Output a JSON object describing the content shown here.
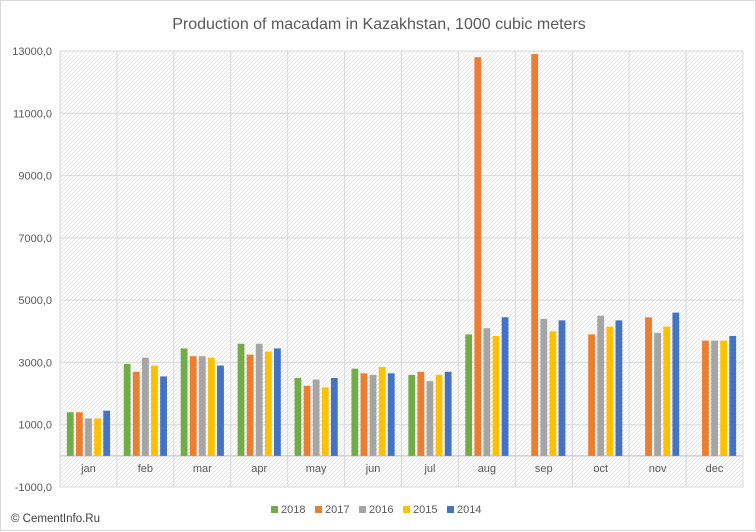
{
  "chart_data": {
    "type": "bar",
    "title": "Production of macadam in Kazakhstan, 1000 cubic meters",
    "categories": [
      "jan",
      "feb",
      "mar",
      "apr",
      "may",
      "jun",
      "jul",
      "aug",
      "sep",
      "oct",
      "nov",
      "dec"
    ],
    "series": [
      {
        "name": "2018",
        "color": "#70ad47",
        "values": [
          1400,
          2950,
          3450,
          3600,
          2500,
          2800,
          2600,
          3900,
          null,
          null,
          null,
          null
        ]
      },
      {
        "name": "2017",
        "color": "#ed7d31",
        "values": [
          1400,
          2700,
          3200,
          3250,
          2250,
          2650,
          2700,
          12800,
          12900,
          3900,
          4450,
          3700
        ]
      },
      {
        "name": "2016",
        "color": "#a5a5a5",
        "values": [
          1200,
          3150,
          3200,
          3600,
          2450,
          2600,
          2400,
          4100,
          4400,
          4500,
          3950,
          3700
        ]
      },
      {
        "name": "2015",
        "color": "#ffc000",
        "values": [
          1200,
          2900,
          3150,
          3350,
          2200,
          2850,
          2600,
          3850,
          4000,
          4150,
          4150,
          3700
        ]
      },
      {
        "name": "2014",
        "color": "#4472c4",
        "values": [
          1450,
          2550,
          2900,
          3450,
          2500,
          2650,
          2700,
          4450,
          4350,
          4350,
          4600,
          3850
        ]
      }
    ],
    "ylim": [
      -1000,
      13000
    ],
    "yticks": [
      -1000,
      1000,
      3000,
      5000,
      7000,
      9000,
      11000,
      13000
    ],
    "ytick_labels": [
      "-1000,0",
      "1000,0",
      "3000,0",
      "5000,0",
      "7000,0",
      "9000,0",
      "11000,0",
      "13000,0"
    ],
    "legend_position": "bottom",
    "plot_area_fill": "hatched"
  },
  "copyright": "© CementInfo.Ru"
}
